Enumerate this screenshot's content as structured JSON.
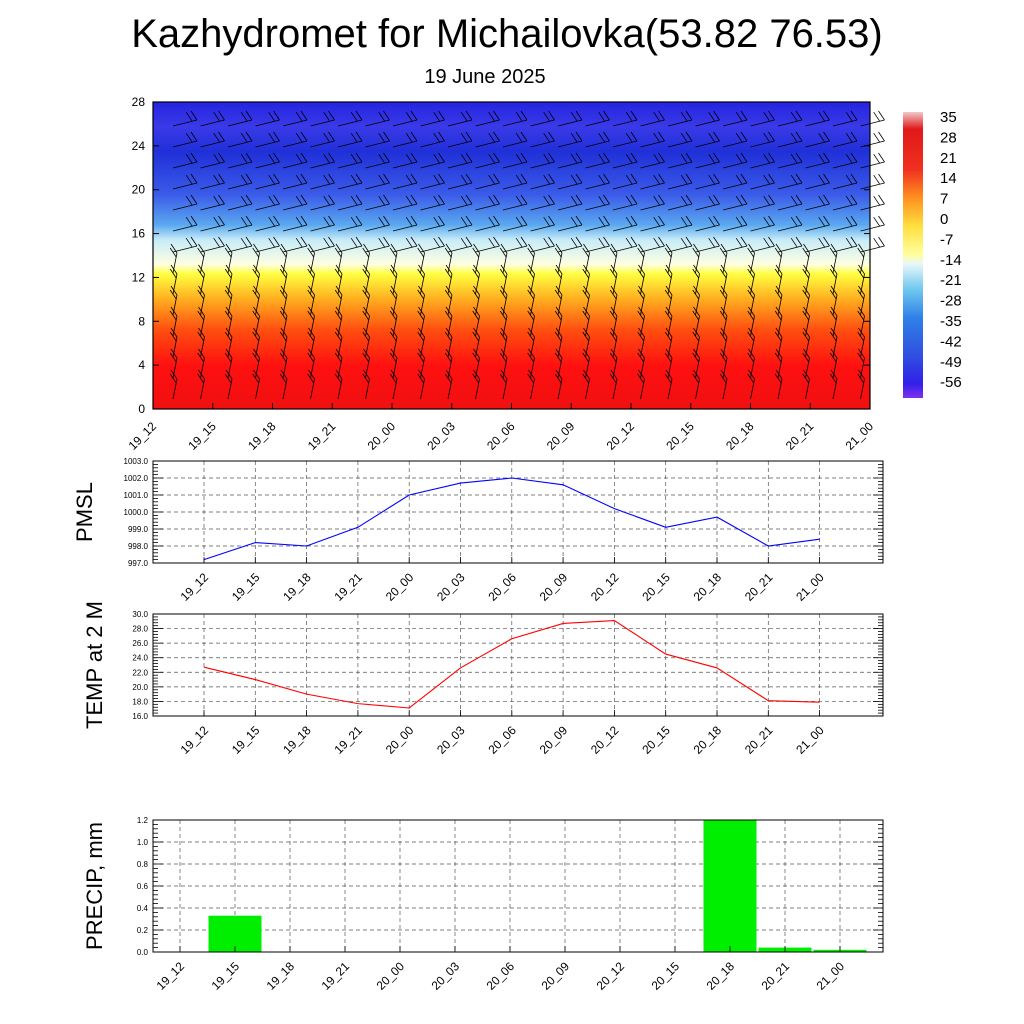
{
  "title": "Kazhydromet for Michailovka(53.82 76.53)",
  "subtitle": "19 June 2025",
  "chart_data": [
    {
      "type": "heatmap",
      "name": "vertical-cross-section",
      "x_ticks": [
        "19_12",
        "19_15",
        "19_18",
        "19_21",
        "20_00",
        "20_03",
        "20_06",
        "20_09",
        "20_12",
        "20_15",
        "20_18",
        "20_21",
        "21_00"
      ],
      "y_ticks": [
        "0",
        "4",
        "8",
        "12",
        "16",
        "20",
        "24",
        "28"
      ],
      "ylim": [
        0,
        28
      ],
      "colorbar_labels": [
        "35",
        "28",
        "21",
        "14",
        "7",
        "0",
        "-7",
        "-14",
        "-21",
        "-28",
        "-35",
        "-42",
        "-49",
        "-56"
      ],
      "colorbar_range": [
        -60,
        39
      ],
      "colors": {
        "top_darkblue": "#2020d8",
        "mid_blue": "#3050e0",
        "light_cyan": "#a0e0f8",
        "yellow": "#ffff60",
        "orange": "#ffa020",
        "red": "#ff1010"
      },
      "overlay": "wind-barbs"
    },
    {
      "type": "line",
      "name": "pmsl",
      "ylabel": "PMSL",
      "ylim": [
        997.0,
        1003.0
      ],
      "y_ticks": [
        "997.0",
        "998.0",
        "999.0",
        "1000.0",
        "1001.0",
        "1002.0",
        "1003.0"
      ],
      "categories": [
        "19_12",
        "19_15",
        "19_18",
        "19_21",
        "20_00",
        "20_03",
        "20_06",
        "20_09",
        "20_12",
        "20_15",
        "20_18",
        "20_21",
        "21_00"
      ],
      "values": [
        997.2,
        998.2,
        998.0,
        999.1,
        1001.0,
        1001.7,
        1002.0,
        1001.6,
        1000.2,
        999.1,
        999.7,
        998.0,
        998.4
      ],
      "color": "#0000ff",
      "grid": true
    },
    {
      "type": "line",
      "name": "temp2m",
      "ylabel": "TEMP at 2 M",
      "ylim": [
        16.0,
        30.0
      ],
      "y_ticks": [
        "16.0",
        "18.0",
        "20.0",
        "22.0",
        "24.0",
        "26.0",
        "28.0",
        "30.0"
      ],
      "categories": [
        "19_12",
        "19_15",
        "19_18",
        "19_21",
        "20_00",
        "20_03",
        "20_06",
        "20_09",
        "20_12",
        "20_15",
        "20_18",
        "20_21",
        "21_00"
      ],
      "values": [
        22.7,
        21.0,
        19.0,
        17.7,
        17.1,
        22.6,
        26.6,
        28.7,
        29.1,
        24.5,
        22.6,
        18.1,
        17.9
      ],
      "color": "#ff0000",
      "grid": true
    },
    {
      "type": "bar",
      "name": "precip",
      "ylabel": "PRECIP, mm",
      "ylim": [
        0.0,
        1.2
      ],
      "y_ticks": [
        "0.0",
        "0.2",
        "0.4",
        "0.6",
        "0.8",
        "1.0",
        "1.2"
      ],
      "categories": [
        "19_12",
        "19_15",
        "19_18",
        "19_21",
        "20_00",
        "20_03",
        "20_06",
        "20_09",
        "20_12",
        "20_15",
        "20_18",
        "20_21",
        "21_00"
      ],
      "values": [
        0,
        0.33,
        0,
        0,
        0,
        0,
        0,
        0,
        0,
        0,
        1.2,
        0.04,
        0.02
      ],
      "color": "#00ee00",
      "grid": true
    }
  ]
}
